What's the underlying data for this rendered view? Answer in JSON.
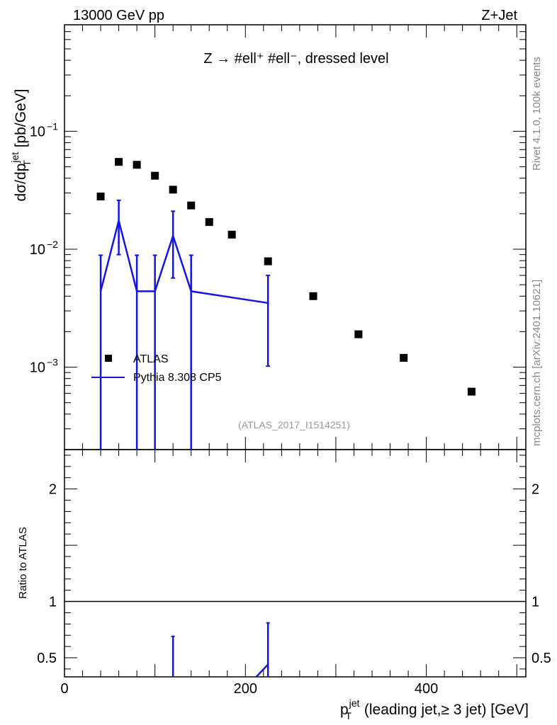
{
  "header": {
    "left_label": "13000 GeV pp",
    "right_label": "Z+Jet",
    "process_label": "Z → #ell⁺ #ell⁻, dressed level",
    "analysis_id": "(ATLAS_2017_I1514251)",
    "side_label_top": "Rivet 4.1.0,  100k events",
    "side_label_bottom": "mcplots.cern.ch [arXiv:2401.10621]"
  },
  "colors": {
    "data": "#000000",
    "mc": "#1414e6",
    "frame": "#000000",
    "side_text": "#888888"
  },
  "chart_data": [
    {
      "type": "scatter",
      "name": "main",
      "yscale": "log",
      "xlim": [
        0,
        510
      ],
      "ylim": [
        0.0002,
        0.8
      ],
      "ylabel": "dσ/dp_T^jet [pb/GeV]",
      "ytick_labels": [
        {
          "value": 0.1,
          "base": "10",
          "exp": "−1"
        },
        {
          "value": 0.01,
          "base": "10",
          "exp": "−2"
        },
        {
          "value": 0.001,
          "base": "10",
          "exp": "−3"
        }
      ],
      "legend_position": "lower-left",
      "series": [
        {
          "name": "ATLAS",
          "style": "markers",
          "x": [
            40,
            60,
            80,
            100,
            120,
            140,
            160,
            185,
            225,
            275,
            325,
            375,
            450
          ],
          "y": [
            0.028,
            0.055,
            0.052,
            0.042,
            0.032,
            0.0235,
            0.017,
            0.0133,
            0.0079,
            0.004,
            0.0019,
            0.0012,
            0.00062
          ]
        },
        {
          "name": "Pythia 8.308 CP5",
          "style": "line",
          "x": [
            40,
            60,
            80,
            100,
            120,
            140,
            225
          ],
          "y": [
            0.0044,
            0.0175,
            0.0044,
            0.0044,
            0.013,
            0.0044,
            0.0035
          ],
          "yerr_low": [
            0.0001,
            0.009,
            0.0001,
            0.0001,
            0.0057,
            0.0001,
            0.00102
          ],
          "yerr_high": [
            0.0089,
            0.026,
            0.0089,
            0.0089,
            0.021,
            0.0089,
            0.006
          ]
        }
      ]
    },
    {
      "type": "line",
      "name": "ratio",
      "xlim": [
        0,
        510
      ],
      "ylim": [
        0.33,
        2.35
      ],
      "ylabel": "Ratio to ATLAS",
      "xlabel": "p_T^jet (leading jet,≥ 3 jet) [GeV]",
      "xtick_labels": [
        "0",
        "200",
        "400"
      ],
      "ytick_labels": [
        "0.5",
        "1",
        "2"
      ],
      "reference": 1,
      "series": [
        {
          "name": "Pythia 8.308 CP5 / ATLAS",
          "x": [
            120,
            225
          ],
          "y": [
            0.41,
            0.44
          ],
          "yerr_low": [
            0.18,
            0.12
          ],
          "yerr_high": [
            0.69,
            0.81
          ]
        }
      ]
    }
  ]
}
